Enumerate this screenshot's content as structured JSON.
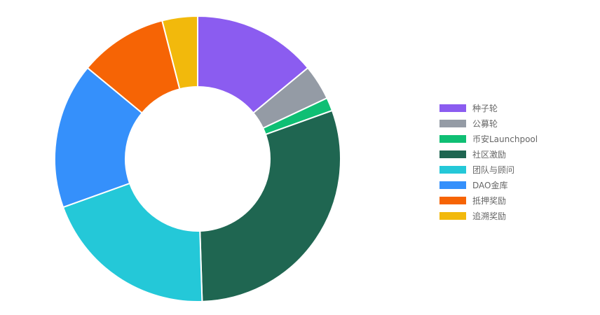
{
  "chart_data": {
    "type": "pie",
    "variant": "donut",
    "title": "",
    "legend_position": "right",
    "categories": [
      "种子轮",
      "公募轮",
      "币安Launchpool",
      "社区激励",
      "团队与顾问",
      "DAO金库",
      "抵押奖励",
      "追溯奖励"
    ],
    "values": [
      14,
      4,
      1.5,
      30,
      20,
      16.5,
      10,
      4
    ],
    "colors": [
      "#8b5cf0",
      "#949ba5",
      "#0fbf74",
      "#1f6651",
      "#24c8d8",
      "#3590fb",
      "#f66405",
      "#f2b90c"
    ]
  }
}
